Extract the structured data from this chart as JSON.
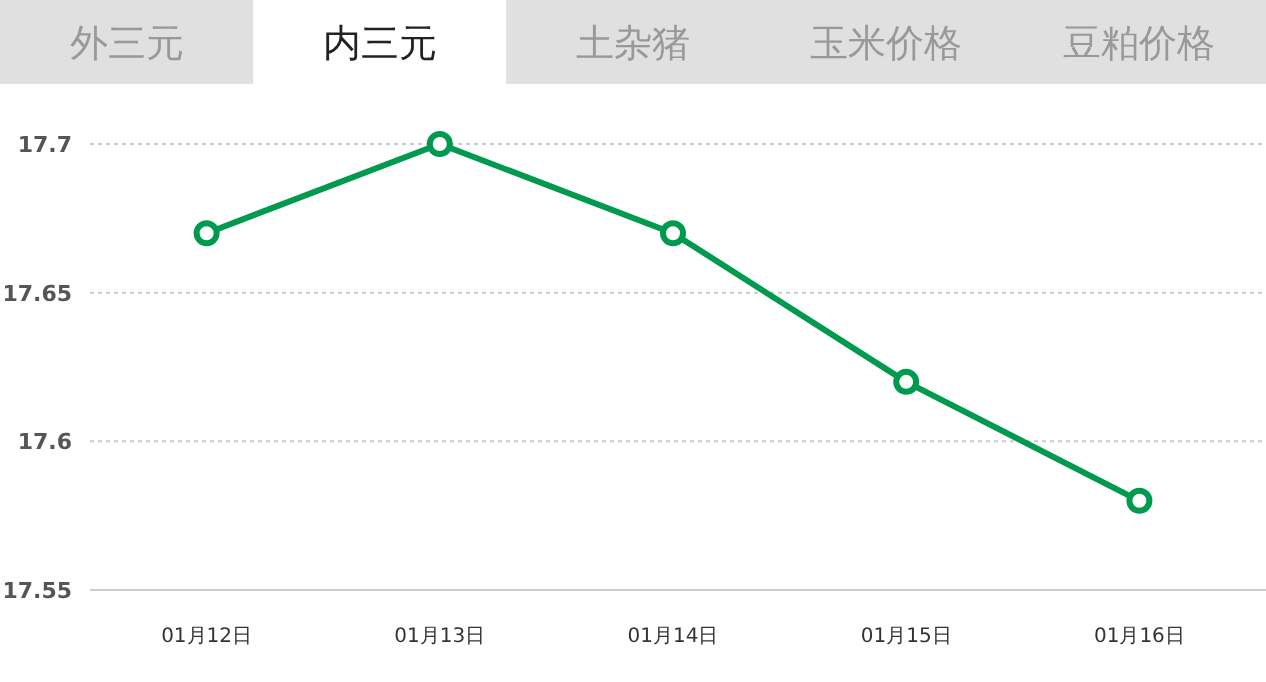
{
  "chart_data": {
    "type": "line",
    "annotations": [
      "外三元",
      "内三元",
      "土杂猪",
      "玉米价格",
      "豆粕价格"
    ],
    "categories": [
      "01月12日",
      "01月13日",
      "01月14日",
      "01月15日",
      "01月16日"
    ],
    "series": [
      {
        "color": "#009a4e",
        "values": [
          17.67,
          17.7,
          17.67,
          17.62,
          17.58
        ]
      }
    ],
    "ylim": [
      17.55,
      17.7
    ],
    "yticks": [
      17.55,
      17.6,
      17.65,
      17.7
    ],
    "grid": "y",
    "marker": "circle",
    "line_style": "solid"
  }
}
